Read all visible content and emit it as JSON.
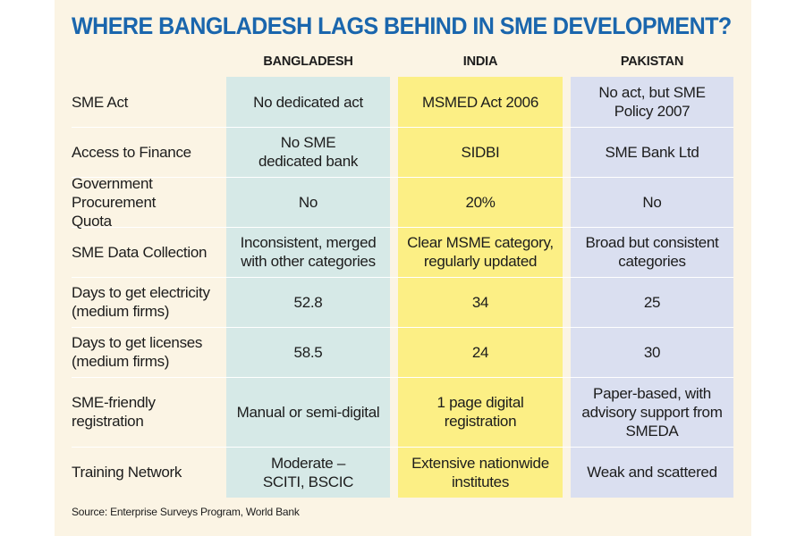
{
  "title": "WHERE BANGLADESH LAGS BEHIND IN SME DEVELOPMENT?",
  "columns": {
    "bangladesh": "BANGLADESH",
    "india": "INDIA",
    "pakistan": "PAKISTAN"
  },
  "rows": [
    {
      "label": "SME Act",
      "bangladesh": "No dedicated act",
      "india": "MSMED Act 2006",
      "pakistan": "No act, but SME Policy 2007"
    },
    {
      "label": "Access to Finance",
      "bangladesh": "No SME dedicated bank",
      "india": "SIDBI",
      "pakistan": "SME Bank Ltd"
    },
    {
      "label": "Government Procurement Quota",
      "bangladesh": "No",
      "india": "20%",
      "pakistan": "No"
    },
    {
      "label": "SME Data Collection",
      "bangladesh": "Inconsistent, merged with other categories",
      "india": "Clear MSME category, regularly updated",
      "pakistan": "Broad but consistent categories"
    },
    {
      "label": "Days to get electricity (medium firms)",
      "bangladesh": "52.8",
      "india": "34",
      "pakistan": "25"
    },
    {
      "label": "Days to get licenses (medium firms)",
      "bangladesh": "58.5",
      "india": "24",
      "pakistan": "30"
    },
    {
      "label": "SME-friendly registration",
      "bangladesh": "Manual or semi-digital",
      "india": "1 page digital registration",
      "pakistan": "Paper-based, with advisory support from SMEDA"
    },
    {
      "label": "Training Network",
      "bangladesh": "Moderate – SCITI, BSCIC",
      "india": "Extensive nationwide institutes",
      "pakistan": "Weak and scattered"
    }
  ],
  "source": "Source: Enterprise Surveys Program, World Bank",
  "colors": {
    "title": "#1a66ad",
    "background": "#fbf4e4",
    "bangladesh_column": "#d6e9e7",
    "india_column": "#fcef85",
    "pakistan_column": "#dadff0"
  }
}
